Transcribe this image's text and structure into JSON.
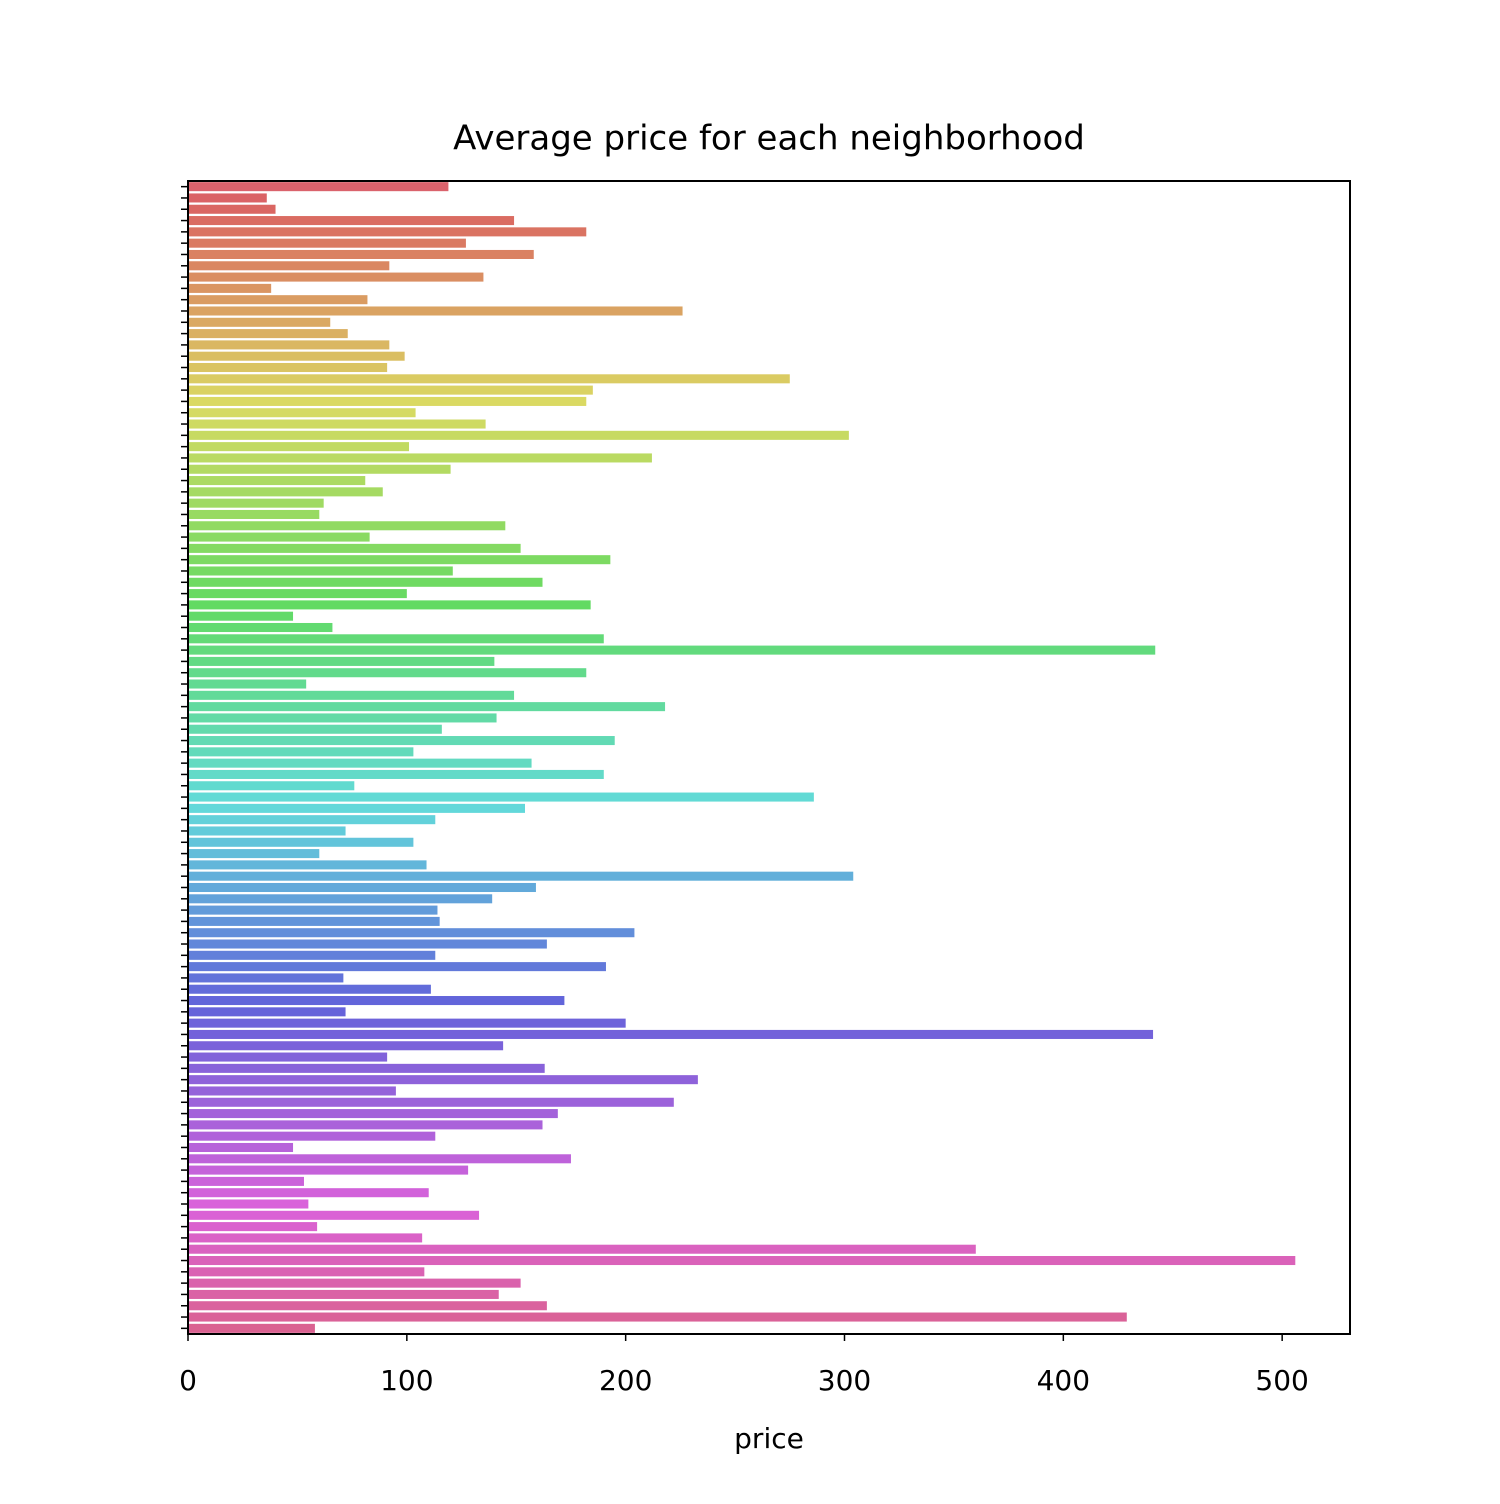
{
  "chart_data": {
    "type": "barh",
    "title": "Average price for each neighborhood",
    "xlabel": "price",
    "categories": [
      null,
      null,
      null,
      null,
      null,
      null,
      null,
      null,
      null,
      null,
      null,
      null,
      null,
      null,
      null,
      null,
      null,
      null,
      null,
      null,
      null,
      null,
      null,
      null,
      null,
      null,
      null,
      null,
      null,
      null,
      null,
      null,
      null,
      null,
      null,
      null,
      null,
      null,
      null,
      null,
      null,
      null,
      null,
      null,
      null,
      null,
      null,
      null,
      null,
      null,
      null,
      null,
      null,
      null,
      null,
      null,
      null,
      null,
      null,
      null,
      null,
      null,
      null,
      null,
      null,
      null,
      null,
      null,
      null,
      null,
      null,
      null,
      null,
      null,
      null,
      null,
      null,
      null,
      null,
      null,
      null,
      null,
      null,
      null,
      null,
      null,
      null,
      null,
      null,
      null,
      null,
      null,
      null,
      null,
      null,
      null,
      null,
      null,
      null,
      null,
      null,
      null
    ],
    "values": [
      119,
      36,
      40,
      149,
      182,
      127,
      158,
      92,
      135,
      38,
      82,
      226,
      65,
      73,
      92,
      99,
      91,
      275,
      185,
      182,
      104,
      136,
      302,
      101,
      212,
      120,
      81,
      89,
      62,
      60,
      145,
      83,
      152,
      193,
      121,
      162,
      100,
      184,
      48,
      66,
      190,
      442,
      140,
      182,
      54,
      149,
      218,
      141,
      116,
      195,
      103,
      157,
      190,
      76,
      286,
      154,
      113,
      72,
      103,
      60,
      109,
      304,
      159,
      139,
      114,
      115,
      204,
      164,
      113,
      191,
      71,
      111,
      172,
      72,
      200,
      441,
      144,
      91,
      163,
      233,
      95,
      222,
      169,
      162,
      113,
      48,
      175,
      128,
      53,
      110,
      55,
      133,
      59,
      107,
      360,
      506,
      108,
      152,
      142,
      164,
      429,
      58
    ],
    "palette": "husl",
    "xlim": [
      0,
      531
    ],
    "xticks": [
      0,
      100,
      200,
      300,
      400,
      500
    ],
    "grid": false
  }
}
